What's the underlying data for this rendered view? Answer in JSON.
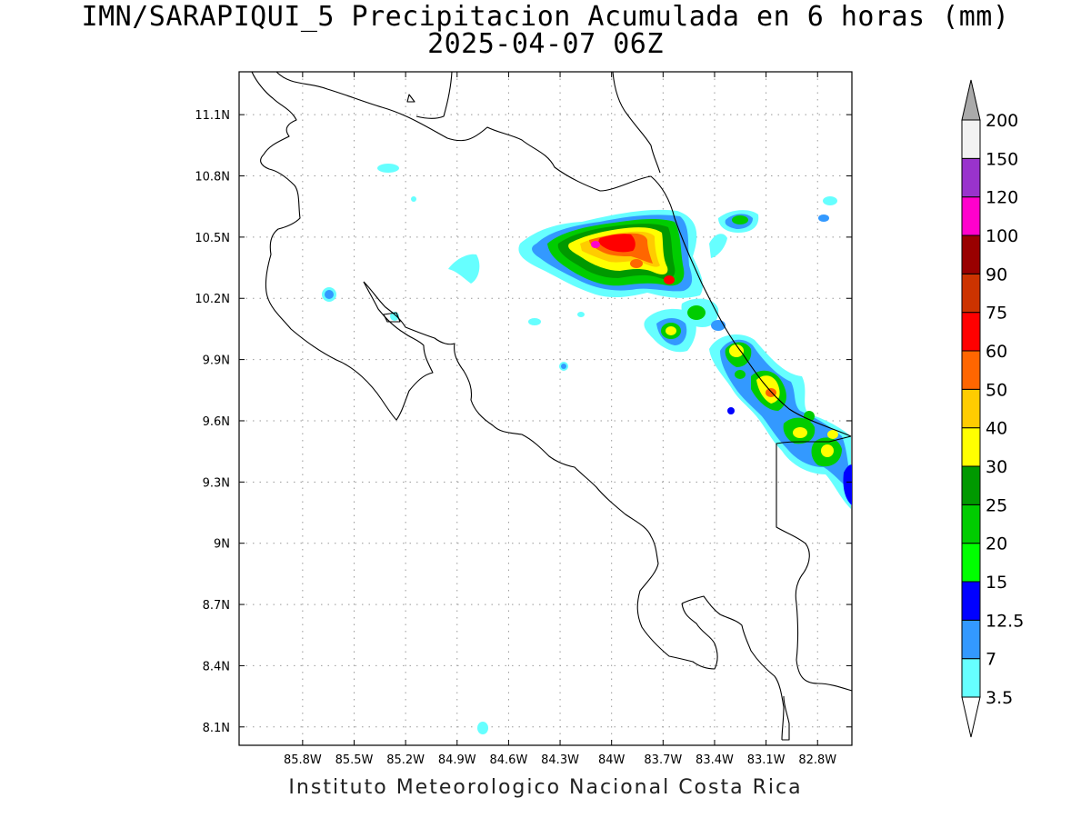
{
  "title": {
    "line1": "IMN/SARAPIQUI_5 Precipitacion Acumulada en 6 horas (mm)",
    "line2": "2025-04-07 06Z"
  },
  "footer": "Instituto Meteorologico Nacional Costa Rica",
  "axes": {
    "lon_range": [
      -86.17,
      -82.6
    ],
    "lat_range": [
      8.01,
      11.31
    ],
    "lon_ticks": [
      "85.8W",
      "85.5W",
      "85.2W",
      "84.9W",
      "84.6W",
      "84.3W",
      "84W",
      "83.7W",
      "83.4W",
      "83.1W",
      "82.8W"
    ],
    "lon_values": [
      -85.8,
      -85.5,
      -85.2,
      -84.9,
      -84.6,
      -84.3,
      -84.0,
      -83.7,
      -83.4,
      -83.1,
      -82.8
    ],
    "lat_ticks": [
      "8.1N",
      "8.4N",
      "8.7N",
      "9N",
      "9.3N",
      "9.6N",
      "9.9N",
      "10.2N",
      "10.5N",
      "10.8N",
      "11.1N"
    ],
    "lat_values": [
      8.1,
      8.4,
      8.7,
      9.0,
      9.3,
      9.6,
      9.9,
      10.2,
      10.5,
      10.8,
      11.1
    ],
    "grid": true
  },
  "colorbar": {
    "labels": [
      "3.5",
      "7",
      "12.5",
      "15",
      "20",
      "25",
      "30",
      "40",
      "50",
      "60",
      "75",
      "90",
      "100",
      "120",
      "150",
      "200"
    ],
    "colors": [
      "#66ffff",
      "#3399ff",
      "#0000ff",
      "#00ff00",
      "#00cc00",
      "#009900",
      "#ffff00",
      "#ffcc00",
      "#ff6600",
      "#ff0000",
      "#cc3300",
      "#990000",
      "#ff00cc",
      "#9933cc",
      "#f2f2f2"
    ],
    "over_color": "#aaaaaa",
    "under_color": "#ffffff"
  }
}
